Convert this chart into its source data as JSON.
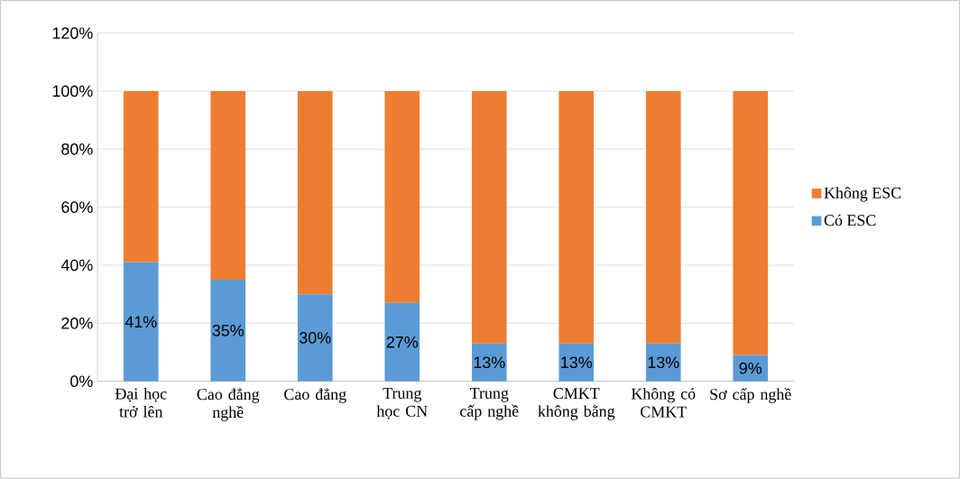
{
  "chart_data": {
    "type": "bar",
    "stacked": true,
    "categories": [
      "Đại học trở lên",
      "Cao đẳng nghề",
      "Cao đẳng",
      "Trung học CN",
      "Trung cấp nghề",
      "CMKT không bằng",
      "Không có CMKT",
      "Sơ cấp nghề"
    ],
    "series": [
      {
        "name": "Có ESC",
        "color": "#5b9bd5",
        "values": [
          41,
          35,
          30,
          27,
          13,
          13,
          13,
          9
        ],
        "value_labels": [
          "41%",
          "35%",
          "30%",
          "27%",
          "13%",
          "13%",
          "13%",
          "9%"
        ]
      },
      {
        "name": "Không ESC",
        "color": "#ed7d31",
        "values": [
          59,
          65,
          70,
          73,
          87,
          87,
          87,
          91
        ]
      }
    ],
    "ylim": [
      0,
      120
    ],
    "yticks": [
      {
        "value": 0,
        "label": "0%"
      },
      {
        "value": 20,
        "label": "20%"
      },
      {
        "value": 40,
        "label": "40%"
      },
      {
        "value": 60,
        "label": "60%"
      },
      {
        "value": 80,
        "label": "80%"
      },
      {
        "value": 100,
        "label": "100%"
      },
      {
        "value": 120,
        "label": "120%"
      }
    ],
    "grid": "y",
    "legend": "right"
  }
}
